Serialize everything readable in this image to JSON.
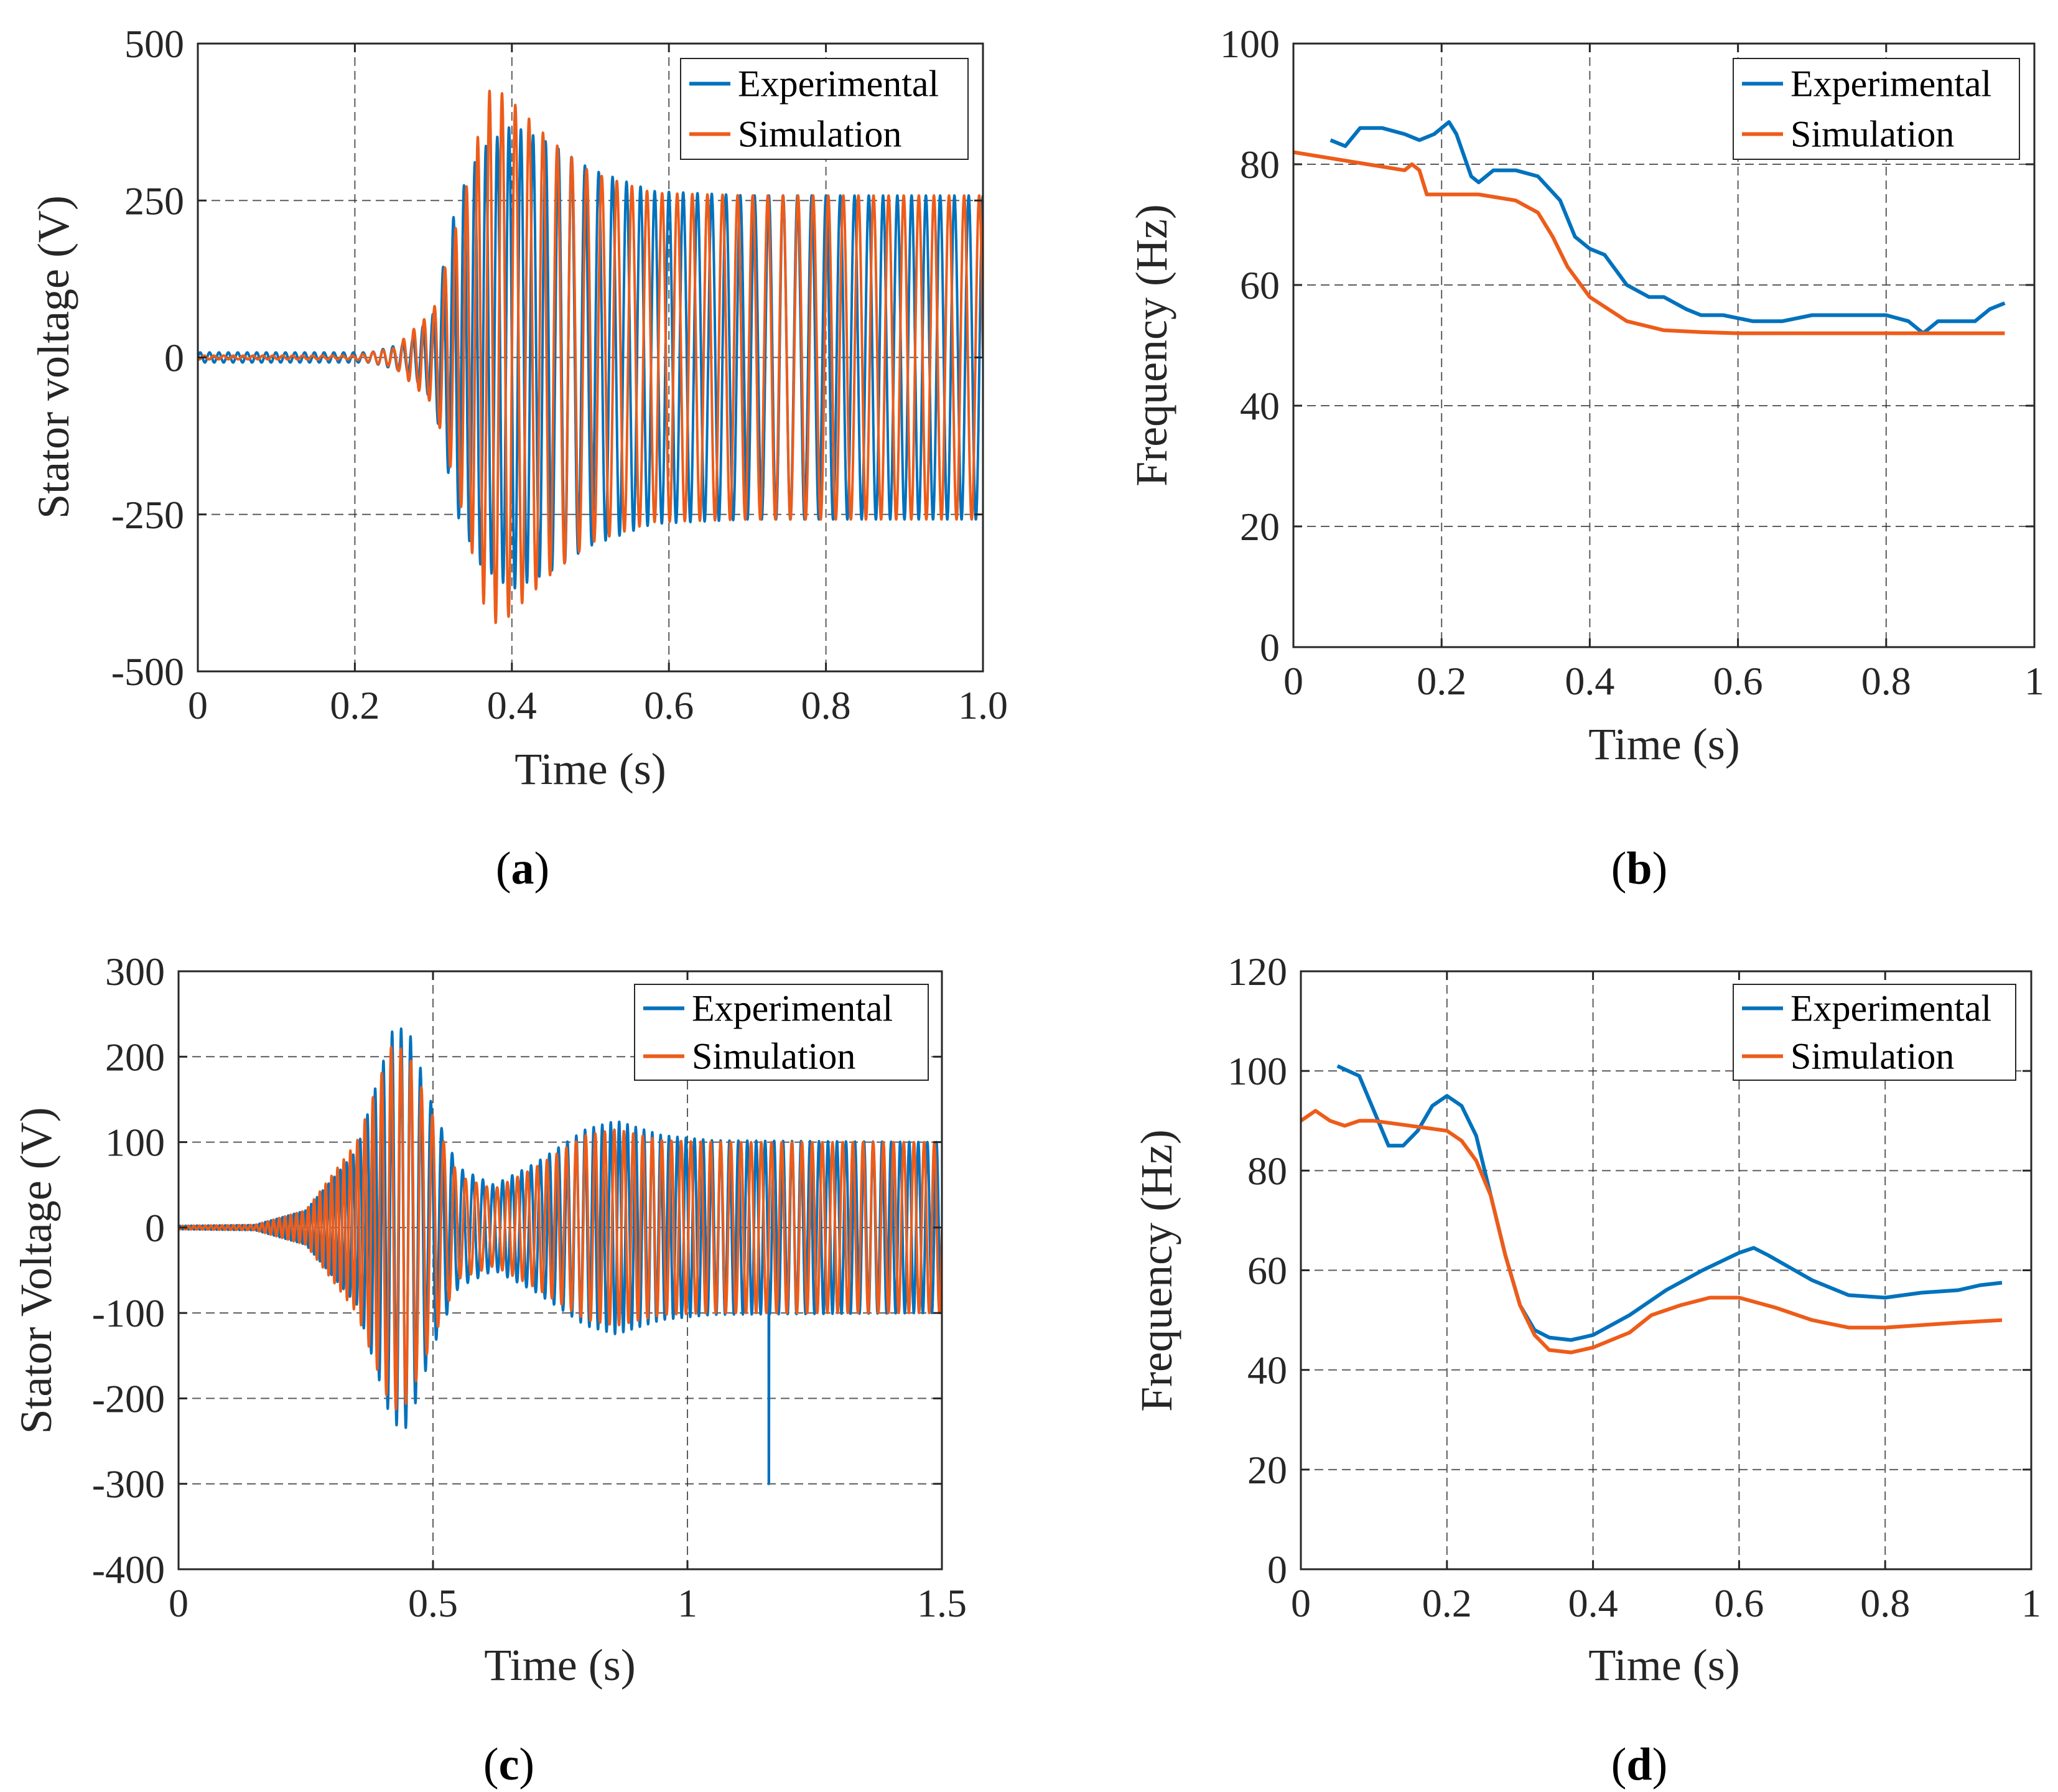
{
  "colors": {
    "experimental": "#0072BD",
    "simulation": "#ED5C1A"
  },
  "chart_data": [
    {
      "id": "a",
      "caption": "a",
      "type": "line",
      "xlabel": "Time (s)",
      "ylabel": "Stator voltage (V)",
      "xlim": [
        0,
        1.0
      ],
      "ylim": [
        -500,
        500
      ],
      "xticks": [
        0,
        0.2,
        0.4,
        0.6,
        0.8,
        1.0
      ],
      "xtick_labels": [
        "0",
        "0.2",
        "0.4",
        "0.6",
        "0.8",
        "1.0"
      ],
      "yticks": [
        -500,
        -250,
        0,
        250,
        500
      ],
      "ytick_labels": [
        "-500",
        "-250",
        "0",
        "250",
        "500"
      ],
      "grid": true,
      "legend": "top-right",
      "series": [
        {
          "name": "Experimental",
          "kind": "oscillation",
          "frequency_hz": [
            [
              0,
              84
            ],
            [
              0.3,
              78
            ],
            [
              0.4,
              66
            ],
            [
              0.5,
              57
            ],
            [
              0.6,
              55
            ],
            [
              1.0,
              55
            ]
          ],
          "amplitude_v": [
            [
              0,
              8
            ],
            [
              0.22,
              8
            ],
            [
              0.27,
              25
            ],
            [
              0.3,
              70
            ],
            [
              0.33,
              250
            ],
            [
              0.36,
              330
            ],
            [
              0.4,
              370
            ],
            [
              0.45,
              340
            ],
            [
              0.5,
              300
            ],
            [
              0.58,
              265
            ],
            [
              0.7,
              258
            ],
            [
              1.0,
              258
            ]
          ],
          "phase": 0
        },
        {
          "name": "Simulation",
          "kind": "oscillation",
          "frequency_hz": [
            [
              0,
              81
            ],
            [
              0.3,
              76
            ],
            [
              0.35,
              70
            ],
            [
              0.4,
              58
            ],
            [
              0.5,
              52
            ],
            [
              1.0,
              52
            ]
          ],
          "amplitude_v": [
            [
              0,
              3
            ],
            [
              0.2,
              3
            ],
            [
              0.25,
              15
            ],
            [
              0.3,
              75
            ],
            [
              0.34,
              260
            ],
            [
              0.37,
              425
            ],
            [
              0.39,
              420
            ],
            [
              0.45,
              345
            ],
            [
              0.5,
              295
            ],
            [
              0.58,
              262
            ],
            [
              0.7,
              258
            ],
            [
              1.0,
              258
            ]
          ],
          "phase": 0.6
        }
      ]
    },
    {
      "id": "b",
      "caption": "b",
      "type": "line",
      "xlabel": "Time (s)",
      "ylabel": "Frequency (Hz)",
      "xlim": [
        0,
        1
      ],
      "ylim": [
        0,
        100
      ],
      "xticks": [
        0,
        0.2,
        0.4,
        0.6,
        0.8,
        1
      ],
      "xtick_labels": [
        "0",
        "0.2",
        "0.4",
        "0.6",
        "0.8",
        "1"
      ],
      "yticks": [
        0,
        20,
        40,
        60,
        80,
        100
      ],
      "ytick_labels": [
        "0",
        "20",
        "40",
        "60",
        "80",
        "100"
      ],
      "grid": true,
      "legend": "top-right",
      "series": [
        {
          "name": "Experimental",
          "x": [
            0.05,
            0.07,
            0.09,
            0.12,
            0.15,
            0.17,
            0.19,
            0.21,
            0.22,
            0.24,
            0.25,
            0.27,
            0.3,
            0.33,
            0.36,
            0.38,
            0.4,
            0.42,
            0.45,
            0.48,
            0.5,
            0.53,
            0.55,
            0.58,
            0.62,
            0.66,
            0.7,
            0.75,
            0.8,
            0.83,
            0.85,
            0.87,
            0.9,
            0.92,
            0.94,
            0.96
          ],
          "y": [
            84,
            83,
            86,
            86,
            85,
            84,
            85,
            87,
            85,
            78,
            77,
            79,
            79,
            78,
            74,
            68,
            66,
            65,
            60,
            58,
            58,
            56,
            55,
            55,
            54,
            54,
            55,
            55,
            55,
            54,
            52,
            54,
            54,
            54,
            56,
            57
          ]
        },
        {
          "name": "Simulation",
          "x": [
            0,
            0.05,
            0.1,
            0.15,
            0.16,
            0.17,
            0.18,
            0.2,
            0.25,
            0.3,
            0.33,
            0.35,
            0.37,
            0.4,
            0.45,
            0.5,
            0.55,
            0.6,
            0.7,
            0.8,
            0.9,
            0.96
          ],
          "y": [
            82,
            81,
            80,
            79,
            80,
            79,
            75,
            75,
            75,
            74,
            72,
            68,
            63,
            58,
            54,
            52.5,
            52.2,
            52,
            52,
            52,
            52,
            52
          ]
        }
      ]
    },
    {
      "id": "c",
      "caption": "c",
      "type": "line",
      "xlabel": "Time (s)",
      "ylabel": "Stator Voltage (V)",
      "xlim": [
        0,
        1.5
      ],
      "ylim": [
        -400,
        300
      ],
      "xticks": [
        0,
        0.5,
        1,
        1.5
      ],
      "xtick_labels": [
        "0",
        "0.5",
        "1",
        "1.5"
      ],
      "yticks": [
        -400,
        -300,
        -200,
        -100,
        0,
        100,
        200,
        300
      ],
      "ytick_labels": [
        "-400",
        "-300",
        "-200",
        "-100",
        "0",
        "100",
        "200",
        "300"
      ],
      "grid": true,
      "legend": "top-right",
      "series": [
        {
          "name": "Experimental",
          "kind": "oscillation",
          "frequency_hz": [
            [
              0,
              90
            ],
            [
              0.3,
              88
            ],
            [
              0.4,
              60
            ],
            [
              0.5,
              47
            ],
            [
              0.7,
              55
            ],
            [
              0.9,
              62
            ],
            [
              1.1,
              57
            ],
            [
              1.5,
              56
            ]
          ],
          "amplitude_v": [
            [
              0,
              2
            ],
            [
              0.15,
              3
            ],
            [
              0.25,
              20
            ],
            [
              0.35,
              90
            ],
            [
              0.42,
              230
            ],
            [
              0.45,
              235
            ],
            [
              0.5,
              140
            ],
            [
              0.55,
              70
            ],
            [
              0.62,
              50
            ],
            [
              0.7,
              75
            ],
            [
              0.8,
              115
            ],
            [
              0.86,
              125
            ],
            [
              0.95,
              108
            ],
            [
              1.05,
              102
            ],
            [
              1.5,
              100
            ]
          ],
          "phase": 0,
          "spike": {
            "x": 1.16,
            "y": -300
          }
        },
        {
          "name": "Simulation",
          "kind": "oscillation",
          "frequency_hz": [
            [
              0,
              91
            ],
            [
              0.3,
              87
            ],
            [
              0.4,
              55
            ],
            [
              0.5,
              45
            ],
            [
              0.7,
              52
            ],
            [
              0.9,
              54
            ],
            [
              1.1,
              50
            ],
            [
              1.5,
              50
            ]
          ],
          "amplitude_v": [
            [
              0,
              2
            ],
            [
              0.15,
              3
            ],
            [
              0.25,
              20
            ],
            [
              0.35,
              100
            ],
            [
              0.42,
              215
            ],
            [
              0.45,
              205
            ],
            [
              0.5,
              130
            ],
            [
              0.55,
              60
            ],
            [
              0.62,
              45
            ],
            [
              0.7,
              70
            ],
            [
              0.8,
              108
            ],
            [
              0.86,
              115
            ],
            [
              0.95,
              102
            ],
            [
              1.05,
              100
            ],
            [
              1.5,
              100
            ]
          ],
          "phase": 0.5
        }
      ]
    },
    {
      "id": "d",
      "caption": "d",
      "type": "line",
      "xlabel": "Time (s)",
      "ylabel": "Frequency (Hz)",
      "xlim": [
        0,
        1
      ],
      "ylim": [
        0,
        120
      ],
      "xticks": [
        0,
        0.2,
        0.4,
        0.6,
        0.8,
        1
      ],
      "xtick_labels": [
        "0",
        "0.2",
        "0.4",
        "0.6",
        "0.8",
        "1"
      ],
      "yticks": [
        0,
        20,
        40,
        60,
        80,
        100,
        120
      ],
      "ytick_labels": [
        "0",
        "20",
        "40",
        "60",
        "80",
        "100",
        "120"
      ],
      "grid": true,
      "legend": "top-right",
      "series": [
        {
          "name": "Experimental",
          "x": [
            0.05,
            0.08,
            0.1,
            0.12,
            0.14,
            0.16,
            0.18,
            0.2,
            0.22,
            0.24,
            0.26,
            0.28,
            0.3,
            0.32,
            0.34,
            0.37,
            0.4,
            0.45,
            0.5,
            0.55,
            0.6,
            0.62,
            0.64,
            0.7,
            0.75,
            0.8,
            0.85,
            0.9,
            0.93,
            0.96
          ],
          "y": [
            101,
            99,
            92,
            85,
            85,
            88,
            93,
            95,
            93,
            87,
            75,
            63,
            53,
            48,
            46.5,
            46,
            47,
            51,
            56,
            60,
            63.5,
            64.5,
            63,
            58,
            55,
            54.5,
            55.5,
            56,
            57,
            57.5
          ]
        },
        {
          "name": "Simulation",
          "x": [
            0,
            0.02,
            0.04,
            0.06,
            0.08,
            0.1,
            0.15,
            0.2,
            0.22,
            0.24,
            0.26,
            0.28,
            0.3,
            0.32,
            0.34,
            0.37,
            0.4,
            0.45,
            0.48,
            0.52,
            0.56,
            0.6,
            0.65,
            0.7,
            0.75,
            0.8,
            0.9,
            0.96
          ],
          "y": [
            90,
            92,
            90,
            89,
            90,
            90,
            89,
            88,
            86,
            82,
            75,
            63,
            53,
            47,
            44,
            43.5,
            44.5,
            47.5,
            51,
            53,
            54.5,
            54.5,
            52.5,
            50,
            48.5,
            48.5,
            49.5,
            50
          ]
        }
      ]
    }
  ]
}
